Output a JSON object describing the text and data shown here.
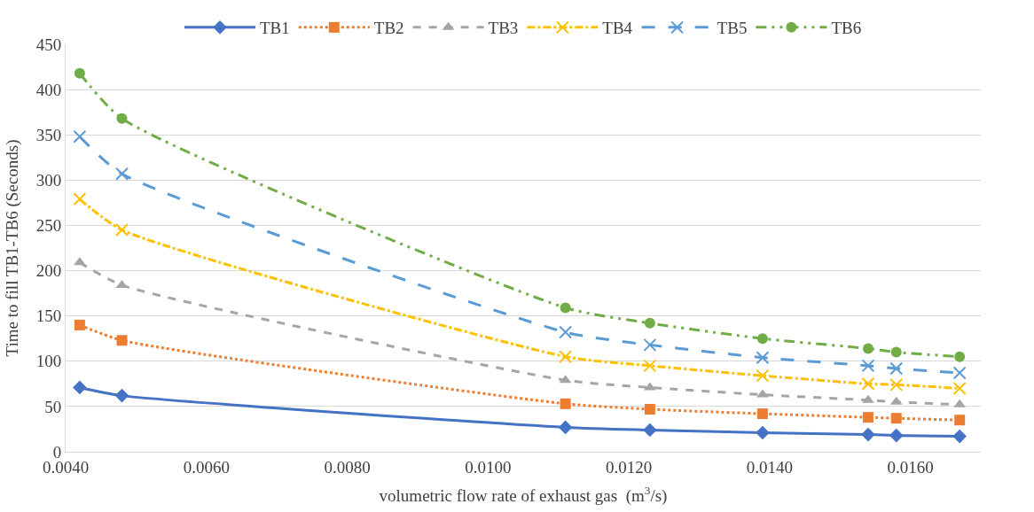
{
  "chart_data": {
    "type": "line",
    "xlabel": "volumetric flow rate of exhaust gas  (m$^{3}$/s)",
    "ylabel": "Time to fill TB1-TB6 (Seconds)",
    "x": [
      0.0042,
      0.0048,
      0.0111,
      0.0123,
      0.0139,
      0.0154,
      0.0158,
      0.0167
    ],
    "xlim": [
      0.004,
      0.017
    ],
    "xticks": [
      {
        "value": 0.004,
        "label": "0.0040"
      },
      {
        "value": 0.006,
        "label": "0.0060"
      },
      {
        "value": 0.008,
        "label": "0.0080"
      },
      {
        "value": 0.01,
        "label": "0.0100"
      },
      {
        "value": 0.012,
        "label": "0.0120"
      },
      {
        "value": 0.014,
        "label": "0.0140"
      },
      {
        "value": 0.016,
        "label": "0.0160"
      }
    ],
    "ylim": [
      0,
      450
    ],
    "yticks": [
      0,
      50,
      100,
      150,
      200,
      250,
      300,
      350,
      400,
      450
    ],
    "grid": "y",
    "legend": "top",
    "series": [
      {
        "name": "TB1",
        "color": "#4472c4",
        "marker": "diamond",
        "line_style": "solid",
        "values": [
          71,
          62,
          27,
          24,
          21,
          19,
          18,
          17
        ]
      },
      {
        "name": "TB2",
        "color": "#ed7d31",
        "marker": "square",
        "line_style": "dotted",
        "values": [
          140,
          123,
          53,
          47,
          42,
          38,
          37,
          35
        ]
      },
      {
        "name": "TB3",
        "color": "#a5a5a5",
        "marker": "triangle",
        "line_style": "dashed",
        "values": [
          209,
          184,
          79,
          71,
          63,
          57,
          55,
          52
        ]
      },
      {
        "name": "TB4",
        "color": "#ffc000",
        "marker": "cross",
        "line_style": "dashdot",
        "values": [
          279,
          245,
          105,
          95,
          84,
          75,
          74,
          70
        ]
      },
      {
        "name": "TB5",
        "color": "#5b9bd5",
        "marker": "cross",
        "line_style": "longdash",
        "values": [
          348,
          307,
          132,
          118,
          104,
          95,
          92,
          87
        ]
      },
      {
        "name": "TB6",
        "color": "#70ad47",
        "marker": "circle",
        "line_style": "longdashdot",
        "values": [
          418,
          368,
          159,
          142,
          125,
          114,
          110,
          105
        ]
      }
    ]
  }
}
